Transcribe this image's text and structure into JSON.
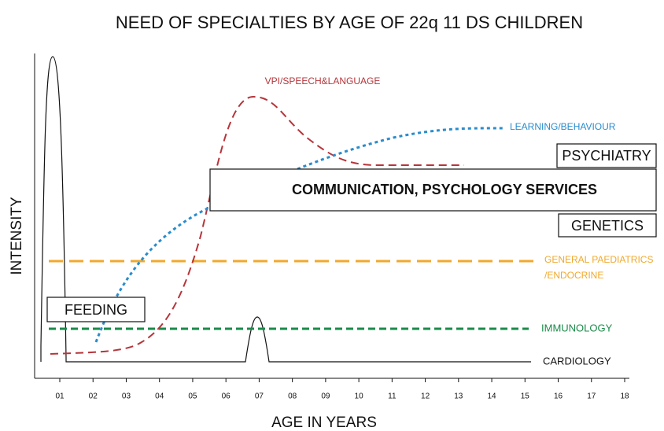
{
  "title": "NEED OF SPECIALTIES BY AGE OF 22q 11 DS CHILDREN",
  "y_axis_label": "INTENSITY",
  "x_axis_label": "AGE IN YEARS",
  "x_tick_labels": [
    "01",
    "02",
    "03",
    "04",
    "05",
    "06",
    "07",
    "08",
    "09",
    "10",
    "11",
    "12",
    "13",
    "14",
    "15",
    "16",
    "17",
    "18"
  ],
  "curve_labels": {
    "vpi": "VPI/SPEECH&LANGUAGE",
    "learning": "LEARNING/BEHAVIOUR",
    "paediatrics": "GENERAL PAEDIATRICS",
    "endocrine": "/ENDOCRINE",
    "immunology": "IMMUNOLOGY",
    "cardiology": "CARDIOLOGY"
  },
  "boxes": {
    "psychiatry": "PSYCHIATRY",
    "communication": "COMMUNICATION, PSYCHOLOGY SERVICES",
    "genetics": "GENETICS",
    "feeding": "FEEDING"
  }
}
